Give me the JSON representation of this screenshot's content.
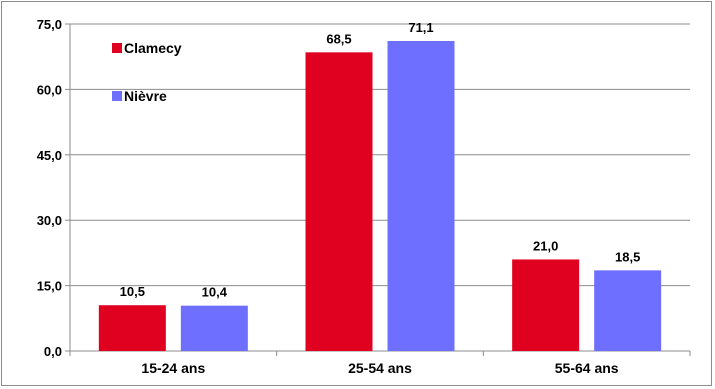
{
  "chart_data": {
    "type": "bar",
    "categories": [
      "15-24 ans",
      "25-54 ans",
      "55-64 ans"
    ],
    "series": [
      {
        "name": "Clamecy",
        "values": [
          10.5,
          68.5,
          21.0
        ],
        "color": "#e00020"
      },
      {
        "name": "Nièvre",
        "values": [
          10.4,
          71.1,
          18.5
        ],
        "color": "#6f6fff"
      }
    ],
    "data_labels": [
      [
        "10,5",
        "68,5",
        "21,0"
      ],
      [
        "10,4",
        "71,1",
        "18,5"
      ]
    ],
    "yticks": [
      0,
      15,
      30,
      45,
      60,
      75
    ],
    "ytick_labels": [
      "0,0",
      "15,0",
      "30,0",
      "45,0",
      "60,0",
      "75,0"
    ],
    "ylim": [
      0,
      75
    ],
    "grid": true,
    "legend": "top-left",
    "title": "",
    "xlabel": "",
    "ylabel": ""
  }
}
